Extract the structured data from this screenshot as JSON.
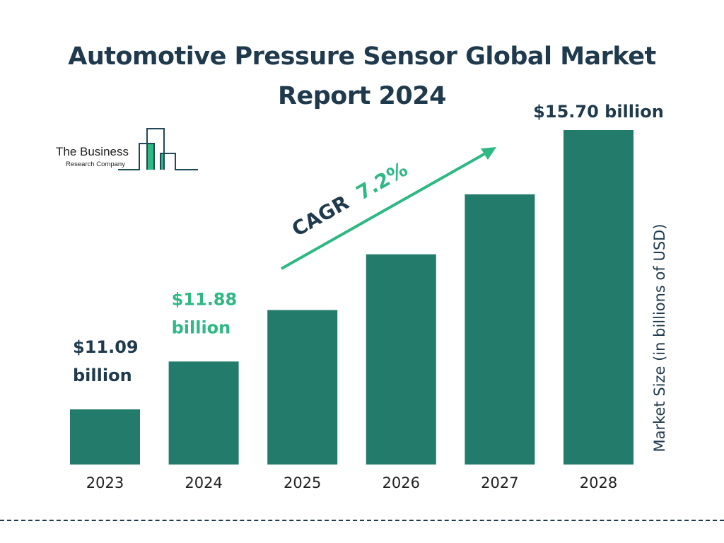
{
  "title_line1": "Automotive Pressure Sensor Global Market",
  "title_line2": "Report 2024",
  "logo": {
    "line1": "The Business",
    "line2": "Research Company"
  },
  "colors": {
    "bar": "#237b6c",
    "accent": "#2eb884",
    "text": "#1f3a4d"
  },
  "chart_data": {
    "type": "bar",
    "title": "Automotive Pressure Sensor Global Market Report 2024",
    "categories": [
      "2023",
      "2024",
      "2025",
      "2026",
      "2027",
      "2028"
    ],
    "values": [
      11.09,
      11.88,
      12.73,
      13.65,
      14.64,
      15.7
    ],
    "data_labels": {
      "0": [
        "$11.09",
        "billion"
      ],
      "1": [
        "$11.88",
        "billion"
      ],
      "5": [
        "$15.70 billion"
      ]
    },
    "ylabel": "Market Size (in billions of USD)",
    "xlabel": "",
    "grid": false,
    "annotation": {
      "prefix": "CAGR",
      "value": "7.2%"
    }
  }
}
